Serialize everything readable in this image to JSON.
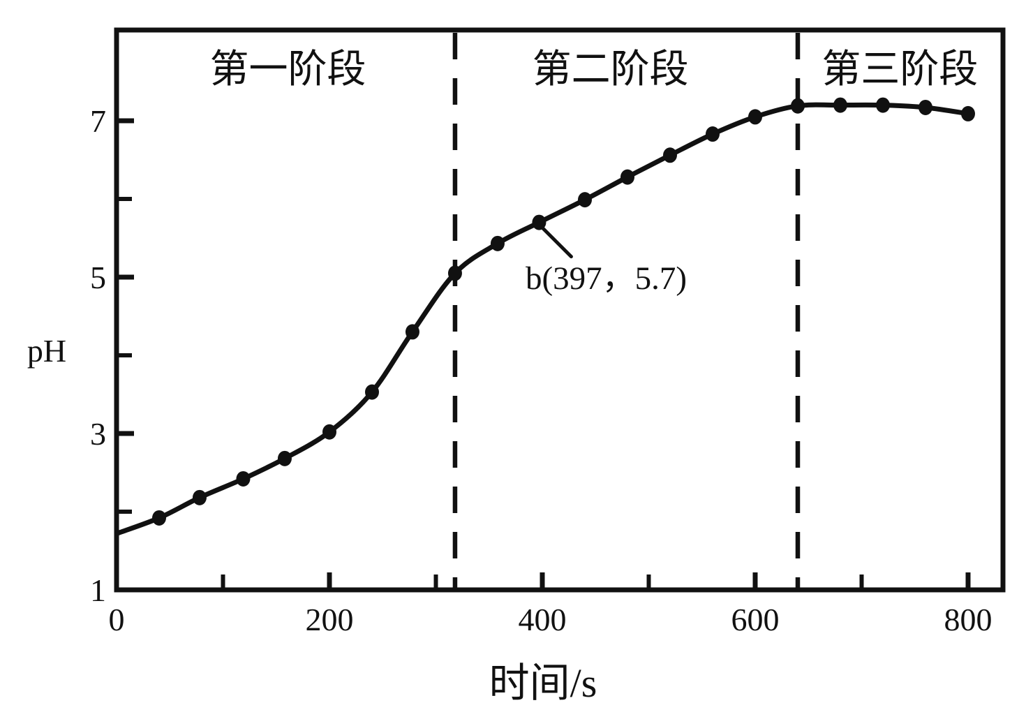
{
  "figure": {
    "background": "#ffffff",
    "ink": "#111111"
  },
  "chart_data": {
    "type": "line",
    "title": "",
    "xlabel": "时间/s",
    "ylabel": "pH",
    "xlim": [
      0,
      833
    ],
    "ylim": [
      1,
      8.17
    ],
    "grid": false,
    "legend": "none",
    "x_ticks_major": {
      "values": [
        0,
        200,
        400,
        600,
        800
      ],
      "labels": [
        "0",
        "200",
        "400",
        "600",
        "800"
      ]
    },
    "x_ticks_minor": [
      100,
      300,
      500,
      700
    ],
    "y_ticks_major": {
      "values": [
        1,
        3,
        5,
        7
      ],
      "labels": [
        "1",
        "3",
        "5",
        "7"
      ]
    },
    "y_ticks_minor": [
      2,
      4,
      6
    ],
    "series": [
      {
        "name": "pH-vs-time",
        "marker": "filled-ellipse",
        "color": "#111111",
        "curve_start": {
          "t": 0,
          "pH": 1.72,
          "has_marker": false
        },
        "points": [
          {
            "t": 40,
            "pH": 1.92
          },
          {
            "t": 78,
            "pH": 2.18
          },
          {
            "t": 119,
            "pH": 2.42
          },
          {
            "t": 158,
            "pH": 2.68
          },
          {
            "t": 200,
            "pH": 3.02
          },
          {
            "t": 240,
            "pH": 3.53
          },
          {
            "t": 278,
            "pH": 4.3
          },
          {
            "t": 318,
            "pH": 5.05
          },
          {
            "t": 358,
            "pH": 5.43
          },
          {
            "t": 397,
            "pH": 5.7
          },
          {
            "t": 440,
            "pH": 5.99
          },
          {
            "t": 480,
            "pH": 6.28
          },
          {
            "t": 520,
            "pH": 6.56
          },
          {
            "t": 560,
            "pH": 6.83
          },
          {
            "t": 600,
            "pH": 7.05
          },
          {
            "t": 640,
            "pH": 7.19
          },
          {
            "t": 680,
            "pH": 7.2
          },
          {
            "t": 720,
            "pH": 7.2
          },
          {
            "t": 760,
            "pH": 7.17
          },
          {
            "t": 800,
            "pH": 7.09
          }
        ]
      }
    ],
    "stage_dividers_t": [
      318,
      640
    ],
    "stage_labels": [
      {
        "label": "第一阶段",
        "center_t": 161
      },
      {
        "label": "第二阶段",
        "center_t": 464
      },
      {
        "label": "第三阶段",
        "center_t": 736
      }
    ],
    "annotation": {
      "label": "b(397，5.7)",
      "target": {
        "t": 397,
        "pH": 5.7
      }
    }
  }
}
